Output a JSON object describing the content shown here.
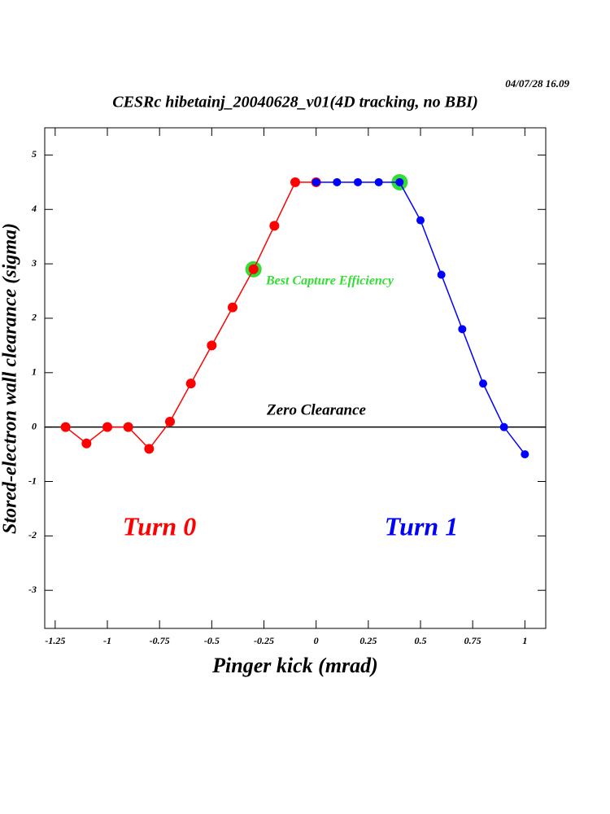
{
  "chart_data": {
    "type": "line",
    "title": "CESRc hibetainj_20040628_v01(4D tracking, no BBI)",
    "timestamp": "04/07/28  16.09",
    "x_label": "Pinger kick (mrad)",
    "y_label": "Stored-electron wall clearance (sigma)",
    "xlim": [
      -1.3,
      1.1
    ],
    "ylim": [
      -3.7,
      5.5
    ],
    "xticks": [
      -1.25,
      -1,
      -0.75,
      -0.5,
      -0.25,
      0,
      0.25,
      0.5,
      0.75,
      1
    ],
    "yticks": [
      -3,
      -2,
      -1,
      0,
      1,
      2,
      3,
      4,
      5
    ],
    "reference_line": {
      "y": 0,
      "label": "Zero Clearance",
      "color": "#000000"
    },
    "series": [
      {
        "name": "Turn 0",
        "color": "#ff0000",
        "x": [
          -1.2,
          -1.1,
          -1.0,
          -0.9,
          -0.8,
          -0.7,
          -0.6,
          -0.5,
          -0.4,
          -0.3,
          -0.2,
          -0.1,
          0
        ],
        "values": [
          0,
          -0.3,
          0,
          0,
          -0.4,
          0.1,
          0.8,
          1.5,
          2.2,
          2.9,
          3.7,
          4.5,
          4.5
        ]
      },
      {
        "name": "Turn 1",
        "color": "#0000ff",
        "x": [
          0,
          0.1,
          0.2,
          0.3,
          0.4,
          0.5,
          0.6,
          0.7,
          0.8,
          0.9,
          1.0
        ],
        "values": [
          4.5,
          4.5,
          4.5,
          4.5,
          4.5,
          3.8,
          2.8,
          1.8,
          0.8,
          0,
          -0.5
        ]
      }
    ],
    "highlight": {
      "label": "Best Capture Efficiency",
      "color": "#33dd33",
      "x": [
        -0.3,
        0.4
      ],
      "values": [
        2.9,
        4.5
      ]
    }
  }
}
